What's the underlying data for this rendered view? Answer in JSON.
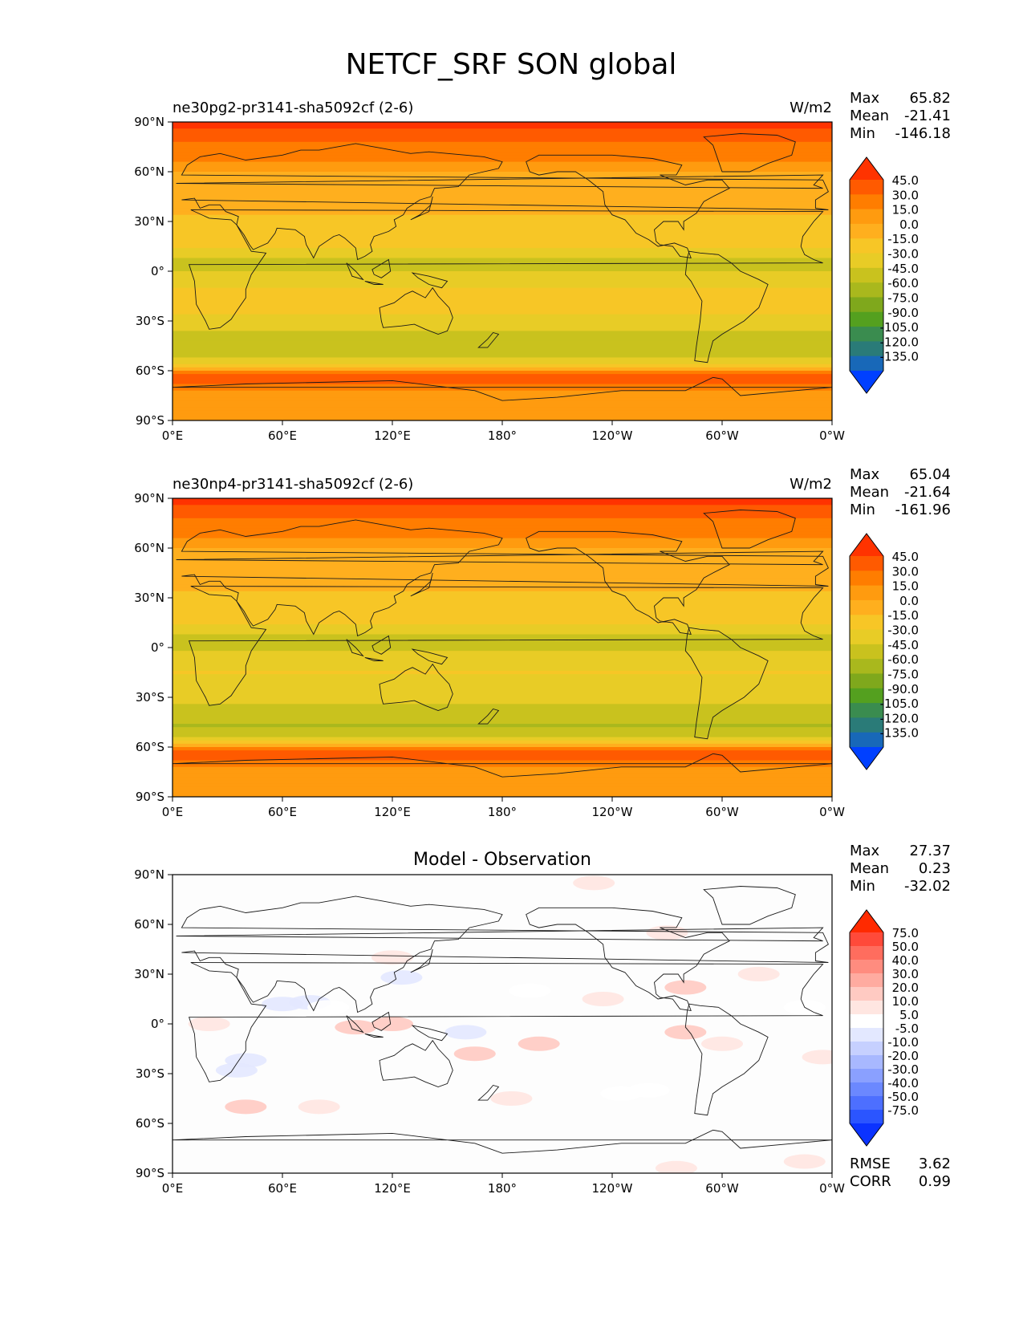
{
  "figure_title": "NETCF_SRF SON global",
  "chart_data": [
    {
      "type": "heatmap",
      "title": "ne30pg2-pr3141-sha5092cf (2-6)",
      "units": "W/m2",
      "stats": {
        "Max": "65.82",
        "Mean": "-21.41",
        "Min": "-146.18"
      },
      "x_ticks": [
        "0°E",
        "60°E",
        "120°E",
        "180°",
        "120°W",
        "60°W",
        "0°W"
      ],
      "y_ticks": [
        "90°N",
        "60°N",
        "30°N",
        "0°",
        "30°S",
        "60°S",
        "90°S"
      ],
      "xlim": [
        0,
        360
      ],
      "ylim": [
        -90,
        90
      ],
      "colorbar": {
        "extend": "both",
        "levels": [
          "45.0",
          "30.0",
          "15.0",
          "0.0",
          "-15.0",
          "-30.0",
          "-45.0",
          "-60.0",
          "-75.0",
          "-90.0",
          "-105.0",
          "-120.0",
          "-135.0"
        ],
        "colors": [
          "#ff3300",
          "#ff5a00",
          "#ff7d00",
          "#ff9b0f",
          "#ffaf1e",
          "#f7c626",
          "#e8cc26",
          "#c9c21e",
          "#a9b81d",
          "#7fa81c",
          "#54a01f",
          "#3a8c4f",
          "#2a7b78",
          "#1868b8",
          "#0040ff"
        ]
      },
      "zonal_profile": {
        "lat": [
          90,
          82,
          75,
          68,
          62,
          58,
          50,
          42,
          35,
          25,
          15,
          10,
          5,
          0,
          -5,
          -10,
          -15,
          -25,
          -35,
          -42,
          -48,
          -52,
          -57,
          -62,
          -67,
          -72,
          -80,
          -90
        ],
        "value": [
          50,
          38,
          25,
          18,
          5,
          -5,
          -10,
          -12,
          -15,
          -20,
          -28,
          -40,
          -55,
          -45,
          -40,
          -30,
          -28,
          -30,
          -45,
          -55,
          -60,
          -50,
          -25,
          30,
          38,
          12,
          10,
          12
        ]
      }
    },
    {
      "type": "heatmap",
      "title": "ne30np4-pr3141-sha5092cf (2-6)",
      "units": "W/m2",
      "stats": {
        "Max": "65.04",
        "Mean": "-21.64",
        "Min": "-161.96"
      },
      "x_ticks": [
        "0°E",
        "60°E",
        "120°E",
        "180°",
        "120°W",
        "60°W",
        "0°W"
      ],
      "y_ticks": [
        "90°N",
        "60°N",
        "30°N",
        "0°",
        "30°S",
        "60°S",
        "90°S"
      ],
      "xlim": [
        0,
        360
      ],
      "ylim": [
        -90,
        90
      ],
      "colorbar": {
        "extend": "both",
        "levels": [
          "45.0",
          "30.0",
          "15.0",
          "0.0",
          "-15.0",
          "-30.0",
          "-45.0",
          "-60.0",
          "-75.0",
          "-90.0",
          "-105.0",
          "-120.0",
          "-135.0"
        ],
        "colors": [
          "#ff3300",
          "#ff5a00",
          "#ff7d00",
          "#ff9b0f",
          "#ffaf1e",
          "#f7c626",
          "#e8cc26",
          "#c9c21e",
          "#a9b81d",
          "#7fa81c",
          "#54a01f",
          "#3a8c4f",
          "#2a7b78",
          "#1868b8",
          "#0040ff"
        ]
      },
      "zonal_profile": {
        "lat": [
          90,
          82,
          75,
          68,
          62,
          58,
          50,
          42,
          35,
          25,
          15,
          10,
          5,
          0,
          -5,
          -10,
          -15,
          -25,
          -35,
          -42,
          -48,
          -52,
          -57,
          -62,
          -67,
          -72,
          -80,
          -90
        ],
        "value": [
          50,
          38,
          25,
          18,
          5,
          -5,
          -10,
          -12,
          -15,
          -20,
          -28,
          -40,
          -58,
          -48,
          -42,
          -32,
          -30,
          -32,
          -47,
          -57,
          -62,
          -52,
          -25,
          30,
          38,
          12,
          10,
          12
        ]
      }
    },
    {
      "type": "heatmap",
      "title": "Model - Observation",
      "units": "",
      "stats": {
        "Max": "27.37",
        "Mean": "0.23",
        "Min": "-32.02"
      },
      "metrics": {
        "RMSE": "3.62",
        "CORR": "0.99"
      },
      "x_ticks": [
        "0°E",
        "60°E",
        "120°E",
        "180°",
        "120°W",
        "60°W",
        "0°W"
      ],
      "y_ticks": [
        "90°N",
        "60°N",
        "30°N",
        "0°",
        "30°S",
        "60°S",
        "90°S"
      ],
      "xlim": [
        0,
        360
      ],
      "ylim": [
        -90,
        90
      ],
      "colorbar": {
        "extend": "both",
        "levels": [
          "75.0",
          "50.0",
          "40.0",
          "30.0",
          "20.0",
          "10.0",
          "5.0",
          "-5.0",
          "-10.0",
          "-20.0",
          "-30.0",
          "-40.0",
          "-50.0",
          "-75.0"
        ],
        "colors": [
          "#ff2a00",
          "#ff4a3a",
          "#ff6d5e",
          "#ff8c7f",
          "#ffaba0",
          "#ffcac2",
          "#ffe6e1",
          "#ffffff",
          "#e3e8ff",
          "#c6d0ff",
          "#a8b8ff",
          "#8aa0ff",
          "#6b88ff",
          "#4d6fff",
          "#2b55ff",
          "#0b33ff"
        ]
      },
      "anomalies": [
        {
          "lon": 75,
          "lat": 13,
          "value": -10
        },
        {
          "lon": 60,
          "lat": 12,
          "value": -10
        },
        {
          "lon": 85,
          "lat": 10,
          "value": -5
        },
        {
          "lon": 40,
          "lat": -22,
          "value": -10
        },
        {
          "lon": 35,
          "lat": -28,
          "value": -10
        },
        {
          "lon": 125,
          "lat": 28,
          "value": -10
        },
        {
          "lon": 195,
          "lat": 20,
          "value": -5
        },
        {
          "lon": 160,
          "lat": -5,
          "value": -10
        },
        {
          "lon": 260,
          "lat": -40,
          "value": -5
        },
        {
          "lon": 345,
          "lat": 10,
          "value": -5
        },
        {
          "lon": 245,
          "lat": -42,
          "value": -5
        },
        {
          "lon": 100,
          "lat": -2,
          "value": 10
        },
        {
          "lon": 120,
          "lat": 0,
          "value": 10
        },
        {
          "lon": 200,
          "lat": -12,
          "value": 10
        },
        {
          "lon": 165,
          "lat": -18,
          "value": 10
        },
        {
          "lon": 235,
          "lat": 15,
          "value": 5
        },
        {
          "lon": 280,
          "lat": 22,
          "value": 10
        },
        {
          "lon": 280,
          "lat": -5,
          "value": 10
        },
        {
          "lon": 300,
          "lat": -12,
          "value": 5
        },
        {
          "lon": 40,
          "lat": -50,
          "value": 10
        },
        {
          "lon": 80,
          "lat": -50,
          "value": 5
        },
        {
          "lon": 120,
          "lat": 40,
          "value": 5
        },
        {
          "lon": 320,
          "lat": 30,
          "value": 5
        },
        {
          "lon": 355,
          "lat": -20,
          "value": 5
        },
        {
          "lon": 20,
          "lat": 0,
          "value": 5
        },
        {
          "lon": 185,
          "lat": -45,
          "value": 5
        },
        {
          "lon": 270,
          "lat": 55,
          "value": 5
        },
        {
          "lon": 230,
          "lat": 85,
          "value": 5
        },
        {
          "lon": 275,
          "lat": -87,
          "value": 5
        },
        {
          "lon": 345,
          "lat": -83,
          "value": 5
        }
      ]
    }
  ]
}
